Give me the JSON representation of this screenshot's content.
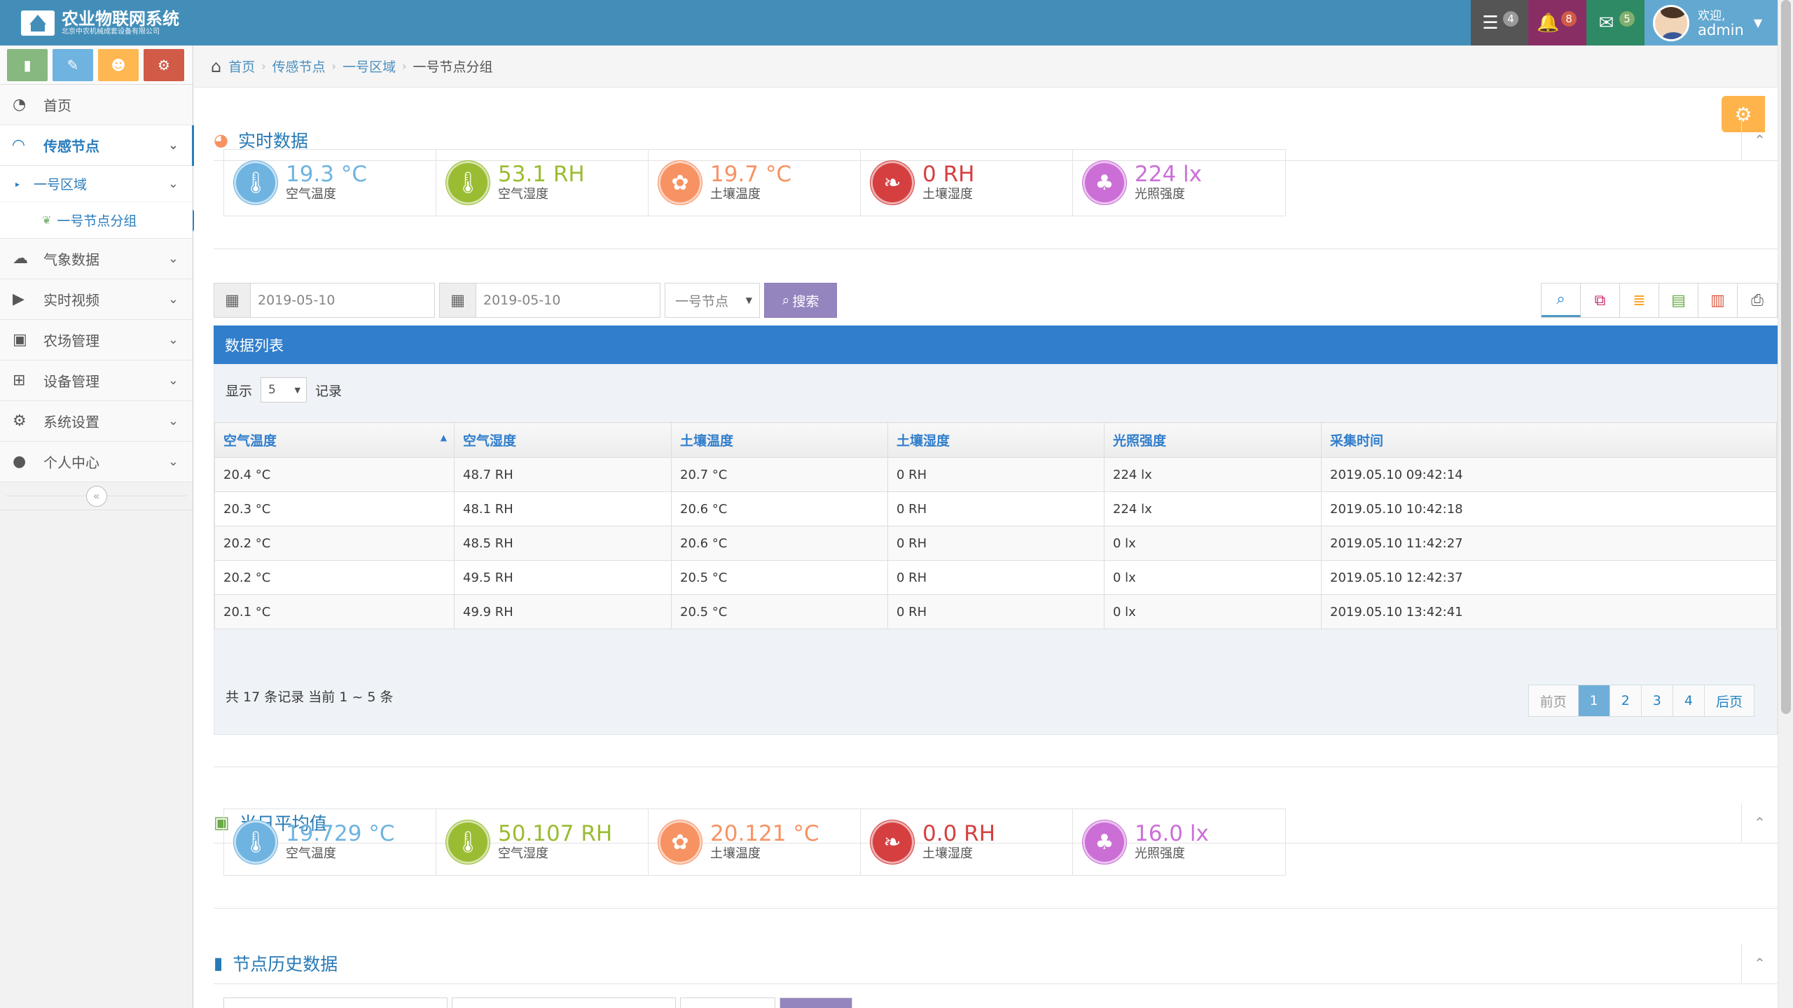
{
  "navbar": {
    "brand_title": "农业物联网系统",
    "brand_sub": "北京中农机械成套设备有限公司",
    "tasks_count": "4",
    "notif_count": "8",
    "msg_count": "5",
    "welcome": "欢迎,",
    "username": "admin"
  },
  "sidebar": {
    "items": [
      {
        "label": "首页",
        "icon": "dashboard-icon"
      },
      {
        "label": "传感节点",
        "icon": "rss-icon"
      },
      {
        "label": "气象数据",
        "icon": "cloud-icon"
      },
      {
        "label": "实时视频",
        "icon": "play-icon"
      },
      {
        "label": "农场管理",
        "icon": "twitter-icon"
      },
      {
        "label": "设备管理",
        "icon": "sitemap-icon"
      },
      {
        "label": "系统设置",
        "icon": "gear-icon"
      },
      {
        "label": "个人中心",
        "icon": "user-icon"
      }
    ],
    "sub_item": "一号区域",
    "sub_sub_item": "一号节点分组"
  },
  "breadcrumb": {
    "home": "首页",
    "level1": "传感节点",
    "level2": "一号区域",
    "current": "一号节点分组"
  },
  "realtime": {
    "title": "实时数据",
    "stats": [
      {
        "value": "19.3 °C",
        "label": "空气温度"
      },
      {
        "value": "53.1 RH",
        "label": "空气湿度"
      },
      {
        "value": "19.7 °C",
        "label": "土壤温度"
      },
      {
        "value": "0 RH",
        "label": "土壤湿度"
      },
      {
        "value": "224 lx",
        "label": "光照强度"
      }
    ]
  },
  "search": {
    "date_from": "2019-05-10",
    "date_to": "2019-05-10",
    "node": "一号节点",
    "button": "搜索"
  },
  "table": {
    "title": "数据列表",
    "show_label": "显示",
    "page_size": "5",
    "records_label": "记录",
    "headers": [
      "空气温度",
      "空气湿度",
      "土壤温度",
      "土壤湿度",
      "光照强度",
      "采集时间"
    ],
    "rows": [
      [
        "20.4 °C",
        "48.7 RH",
        "20.7 °C",
        "0 RH",
        "224 lx",
        "2019.05.10 09:42:14"
      ],
      [
        "20.3 °C",
        "48.1 RH",
        "20.6 °C",
        "0 RH",
        "224 lx",
        "2019.05.10 10:42:18"
      ],
      [
        "20.2 °C",
        "48.5 RH",
        "20.6 °C",
        "0 RH",
        "0 lx",
        "2019.05.10 11:42:27"
      ],
      [
        "20.2 °C",
        "49.5 RH",
        "20.5 °C",
        "0 RH",
        "0 lx",
        "2019.05.10 12:42:37"
      ],
      [
        "20.1 °C",
        "49.9 RH",
        "20.5 °C",
        "0 RH",
        "0 lx",
        "2019.05.10 13:42:41"
      ]
    ],
    "info": "共 17 条记录 当前 1 ~ 5 条",
    "pager": {
      "prev": "前页",
      "pages": [
        "1",
        "2",
        "3",
        "4"
      ],
      "next": "后页"
    }
  },
  "daily_avg": {
    "title": "当日平均值",
    "stats": [
      {
        "value": "19.729 °C",
        "label": "空气温度"
      },
      {
        "value": "50.107 RH",
        "label": "空气湿度"
      },
      {
        "value": "20.121 °C",
        "label": "土壤温度"
      },
      {
        "value": "0.0 RH",
        "label": "土壤湿度"
      },
      {
        "value": "16.0 lx",
        "label": "光照强度"
      }
    ]
  },
  "history": {
    "title": "节点历史数据"
  }
}
